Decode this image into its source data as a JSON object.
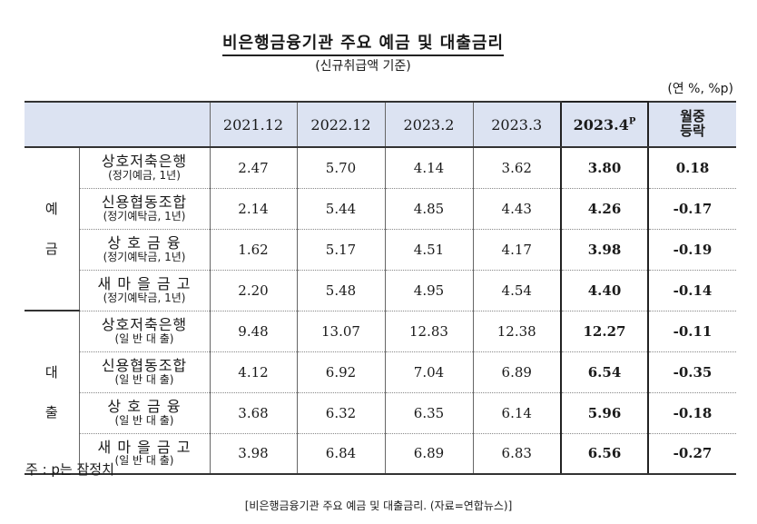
{
  "title": "비은행금융기관 주요 예금 및 대출금리",
  "subtitle": "(신규취급액 기준)",
  "unit": "(연 %, %p)",
  "header": {
    "columns": [
      "2021.12",
      "2022.12",
      "2023.2",
      "2023.3"
    ],
    "current": "2023.4",
    "current_sup": "P",
    "mom_line1": "월중",
    "mom_line2": "등락"
  },
  "groups": [
    {
      "label_top": "예",
      "label_bottom": "금",
      "rows": [
        {
          "name": "상호저축은행",
          "sub": "(정기예금, 1년)",
          "values": [
            "2.47",
            "5.70",
            "4.14",
            "3.62"
          ],
          "current": "3.80",
          "change": "0.18"
        },
        {
          "name": "신용협동조합",
          "sub": "(정기예탁금, 1년)",
          "values": [
            "2.14",
            "5.44",
            "4.85",
            "4.43"
          ],
          "current": "4.26",
          "change": "-0.17"
        },
        {
          "name": "상 호 금 융",
          "sub": "(정기예탁금, 1년)",
          "values": [
            "1.62",
            "5.17",
            "4.51",
            "4.17"
          ],
          "current": "3.98",
          "change": "-0.19"
        },
        {
          "name": "새 마 을 금 고",
          "sub": "(정기예탁금, 1년)",
          "values": [
            "2.20",
            "5.48",
            "4.95",
            "4.54"
          ],
          "current": "4.40",
          "change": "-0.14"
        }
      ]
    },
    {
      "label_top": "대",
      "label_bottom": "출",
      "rows": [
        {
          "name": "상호저축은행",
          "sub": "(일 반 대 출)",
          "values": [
            "9.48",
            "13.07",
            "12.83",
            "12.38"
          ],
          "current": "12.27",
          "change": "-0.11"
        },
        {
          "name": "신용협동조합",
          "sub": "(일 반 대 출)",
          "values": [
            "4.12",
            "6.92",
            "7.04",
            "6.89"
          ],
          "current": "6.54",
          "change": "-0.35"
        },
        {
          "name": "상 호 금 융",
          "sub": "(일 반 대 출)",
          "values": [
            "3.68",
            "6.32",
            "6.35",
            "6.14"
          ],
          "current": "5.96",
          "change": "-0.18"
        },
        {
          "name": "새 마 을 금 고",
          "sub": "(일 반 대 출)",
          "values": [
            "3.98",
            "6.84",
            "6.89",
            "6.83"
          ],
          "current": "6.56",
          "change": "-0.27"
        }
      ]
    }
  ],
  "note": "주 : p는 잠정치",
  "caption": "[비은행금융기관 주요 예금 및 대출금리. (자료=연합뉴스)]"
}
